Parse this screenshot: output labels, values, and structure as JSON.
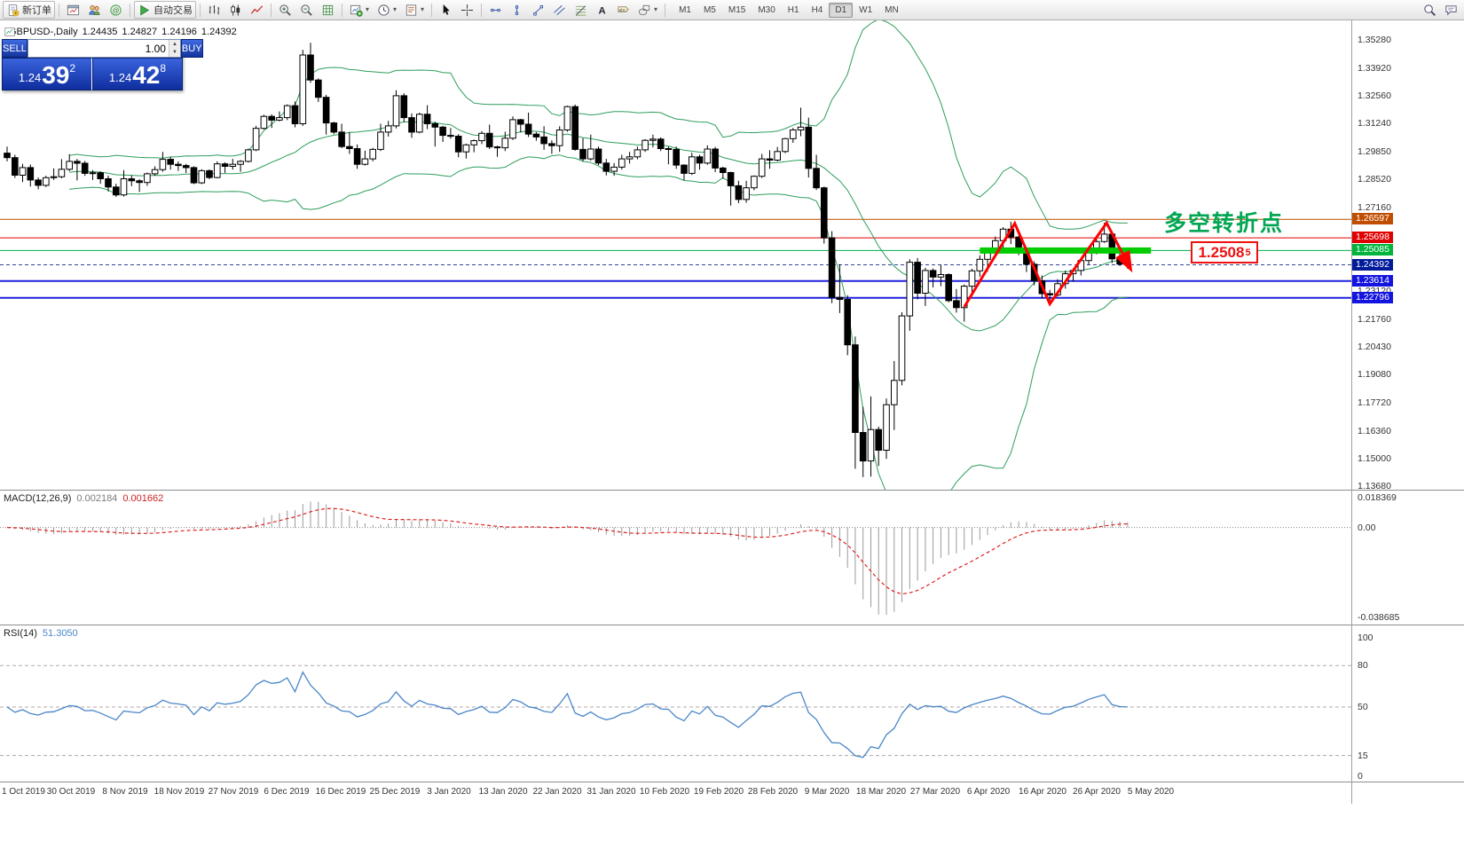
{
  "toolbar": {
    "groups": [
      [
        {
          "name": "new-order",
          "icon": "doc",
          "label": "新订单"
        }
      ],
      [
        {
          "name": "chart-window",
          "icon": "chartwin"
        },
        {
          "name": "profiles",
          "icon": "profiles"
        },
        {
          "name": "community",
          "icon": "at"
        }
      ],
      [
        {
          "name": "autotrade",
          "icon": "play",
          "label": "自动交易"
        }
      ],
      [
        {
          "name": "bar-chart",
          "icon": "bars"
        },
        {
          "name": "candlestick-chart",
          "icon": "candles"
        },
        {
          "name": "line-chart",
          "icon": "linech"
        }
      ],
      [
        {
          "name": "zoom-in",
          "icon": "zoomin"
        },
        {
          "name": "zoom-out",
          "icon": "zoomout"
        },
        {
          "name": "grid",
          "icon": "grid"
        }
      ],
      [
        {
          "name": "new-chart",
          "icon": "newchart",
          "caret": true
        },
        {
          "name": "periods",
          "icon": "clock",
          "caret": true
        },
        {
          "name": "templates",
          "icon": "template",
          "caret": true
        }
      ],
      [
        {
          "name": "cursor",
          "icon": "cursor"
        },
        {
          "name": "crosshair",
          "icon": "cross"
        }
      ],
      [
        {
          "name": "horizontal-line",
          "icon": "hline"
        },
        {
          "name": "vertical-line",
          "icon": "vline"
        },
        {
          "name": "trendline",
          "icon": "tline"
        },
        {
          "name": "channel",
          "icon": "channel"
        },
        {
          "name": "fibonacci",
          "icon": "fibo"
        },
        {
          "name": "text",
          "icon": "textA"
        },
        {
          "name": "text-label",
          "icon": "labelT"
        },
        {
          "name": "shapes",
          "icon": "shapes",
          "caret": true
        }
      ]
    ],
    "timeframes": {
      "items": [
        "M1",
        "M5",
        "M15",
        "M30",
        "H1",
        "H4",
        "D1",
        "W1",
        "MN"
      ],
      "active": "D1"
    },
    "right_icons": [
      {
        "name": "symbol-search",
        "icon": "search"
      },
      {
        "name": "chat",
        "icon": "chat"
      }
    ]
  },
  "symbol_bar": {
    "title": "GBPUSD-,Daily",
    "open": "1.24435",
    "high": "1.24827",
    "low": "1.24196",
    "close": "1.24392"
  },
  "trade_widget": {
    "sell_label": "SELL",
    "buy_label": "BUY",
    "volume": "1.00",
    "sell_price": {
      "prefix": "1.24",
      "big": "39",
      "sup": "2"
    },
    "buy_price": {
      "prefix": "1.24",
      "big": "42",
      "sup": "8"
    }
  },
  "price_scale": {
    "regular": [
      "1.35280",
      "1.33920",
      "1.32560",
      "1.31240",
      "1.29850",
      "1.28520",
      "1.27160",
      "1.23120",
      "1.21760",
      "1.20430",
      "1.19080",
      "1.17720",
      "1.16360",
      "1.15000",
      "1.13680"
    ],
    "special": [
      {
        "text": "1.26597",
        "value": 1.26597,
        "bg": "#C04E00"
      },
      {
        "text": "1.25698",
        "value": 1.25698,
        "bg": "#E00000"
      },
      {
        "text": "1.25085",
        "value": 1.25085,
        "bg": "#00B43C"
      },
      {
        "text": "1.24392",
        "value": 1.24392,
        "bg": "#001A9A"
      },
      {
        "text": "1.23614",
        "value": 1.23614,
        "bg": "#1414E0"
      },
      {
        "text": "1.22796",
        "value": 1.22796,
        "bg": "#1414E0"
      }
    ]
  },
  "annotations": {
    "turning_point": {
      "text": "多空转折点",
      "color": "#00A651"
    },
    "callout": {
      "text": "1.2508",
      "sup": "5",
      "color": "#EE1111"
    },
    "support_band": {
      "price": 1.25085,
      "from_bar": 125,
      "to_bar": 147,
      "color": "#00CC00"
    },
    "zigzag": {
      "color": "#FF0000",
      "points_bar_price": [
        [
          123,
          1.2235
        ],
        [
          129.5,
          1.264
        ],
        [
          134,
          1.225
        ],
        [
          141.3,
          1.2642
        ],
        [
          144.3,
          1.2425
        ]
      ]
    },
    "levels": [
      {
        "value": 1.26597,
        "color": "#C04E00",
        "width": 1
      },
      {
        "value": 1.25698,
        "color": "#E00000",
        "width": 1
      },
      {
        "value": 1.25085,
        "color": "#00B050",
        "width": 1
      },
      {
        "value": 1.24392,
        "color": "#334499",
        "width": 1,
        "dash": true
      },
      {
        "value": 1.23614,
        "color": "#2020DD",
        "width": 2
      },
      {
        "value": 1.22796,
        "color": "#2020DD",
        "width": 2
      }
    ]
  },
  "chart_data": {
    "type": "candlestick",
    "symbol": "GBPUSD",
    "timeframe": "Daily",
    "y_range": [
      1.1368,
      1.3528
    ],
    "x_labels": [
      "1 Oct 2019",
      "30 Oct 2019",
      "8 Nov 2019",
      "18 Nov 2019",
      "27 Nov 2019",
      "6 Dec 2019",
      "16 Dec 2019",
      "25 Dec 2019",
      "3 Jan 2020",
      "13 Jan 2020",
      "22 Jan 2020",
      "31 Jan 2020",
      "10 Feb 2020",
      "19 Feb 2020",
      "28 Feb 2020",
      "9 Mar 2020",
      "18 Mar 2020",
      "27 Mar 2020",
      "6 Apr 2020",
      "16 Apr 2020",
      "26 Apr 2020",
      "5 May 2020"
    ],
    "candles": [
      [
        1.298,
        1.3012,
        1.294,
        1.2958
      ],
      [
        1.2958,
        1.2972,
        1.286,
        1.2873
      ],
      [
        1.2873,
        1.2928,
        1.284,
        1.291
      ],
      [
        1.291,
        1.2925,
        1.2818,
        1.285
      ],
      [
        1.285,
        1.2862,
        1.2805,
        1.2824
      ],
      [
        1.2824,
        1.287,
        1.2816,
        1.2861
      ],
      [
        1.2861,
        1.2906,
        1.285,
        1.2866
      ],
      [
        1.2866,
        1.2951,
        1.2858,
        1.2902
      ],
      [
        1.2902,
        1.2975,
        1.2892,
        1.294
      ],
      [
        1.294,
        1.2952,
        1.2848,
        1.2931
      ],
      [
        1.2931,
        1.2942,
        1.287,
        1.2882
      ],
      [
        1.2882,
        1.2898,
        1.285,
        1.2885
      ],
      [
        1.2885,
        1.2892,
        1.2832,
        1.2856
      ],
      [
        1.2856,
        1.2871,
        1.2794,
        1.2816
      ],
      [
        1.2816,
        1.2832,
        1.2768,
        1.2778
      ],
      [
        1.2778,
        1.2898,
        1.277,
        1.2856
      ],
      [
        1.2856,
        1.2872,
        1.282,
        1.2846
      ],
      [
        1.2846,
        1.2854,
        1.2792,
        1.2838
      ],
      [
        1.2838,
        1.2886,
        1.2822,
        1.288
      ],
      [
        1.288,
        1.2916,
        1.287,
        1.29
      ],
      [
        1.29,
        1.2986,
        1.289,
        1.295
      ],
      [
        1.295,
        1.2962,
        1.29,
        1.2926
      ],
      [
        1.2926,
        1.294,
        1.2894,
        1.292
      ],
      [
        1.292,
        1.2928,
        1.2884,
        1.291
      ],
      [
        1.291,
        1.2916,
        1.283,
        1.2836
      ],
      [
        1.2836,
        1.2902,
        1.283,
        1.2895
      ],
      [
        1.2895,
        1.2901,
        1.2854,
        1.2862
      ],
      [
        1.2862,
        1.294,
        1.2858,
        1.2928
      ],
      [
        1.2928,
        1.2936,
        1.2884,
        1.2916
      ],
      [
        1.2916,
        1.2952,
        1.29,
        1.2926
      ],
      [
        1.2926,
        1.2946,
        1.289,
        1.294
      ],
      [
        1.294,
        1.3002,
        1.2935,
        1.2996
      ],
      [
        1.2996,
        1.3112,
        1.299,
        1.31
      ],
      [
        1.31,
        1.3166,
        1.3094,
        1.3158
      ],
      [
        1.3158,
        1.3168,
        1.3102,
        1.314
      ],
      [
        1.314,
        1.3182,
        1.3134,
        1.3152
      ],
      [
        1.3152,
        1.3216,
        1.314,
        1.321
      ],
      [
        1.321,
        1.323,
        1.3105,
        1.3122
      ],
      [
        1.3122,
        1.348,
        1.3112,
        1.3455
      ],
      [
        1.3455,
        1.3514,
        1.332,
        1.3334
      ],
      [
        1.3334,
        1.3342,
        1.3228,
        1.325
      ],
      [
        1.325,
        1.3262,
        1.307,
        1.3126
      ],
      [
        1.3126,
        1.3132,
        1.3072,
        1.3082
      ],
      [
        1.3082,
        1.3122,
        1.3004,
        1.3012
      ],
      [
        1.3012,
        1.3082,
        1.2976,
        1.3002
      ],
      [
        1.3002,
        1.3022,
        1.2904,
        1.2926
      ],
      [
        1.2926,
        1.2992,
        1.292,
        1.2952
      ],
      [
        1.2952,
        1.3006,
        1.294,
        1.2998
      ],
      [
        1.2998,
        1.3122,
        1.299,
        1.3082
      ],
      [
        1.3082,
        1.3136,
        1.306,
        1.3112
      ],
      [
        1.3112,
        1.3284,
        1.31,
        1.3258
      ],
      [
        1.3258,
        1.327,
        1.313,
        1.3152
      ],
      [
        1.3152,
        1.3172,
        1.3054,
        1.3082
      ],
      [
        1.3082,
        1.3176,
        1.3076,
        1.3168
      ],
      [
        1.3168,
        1.3212,
        1.3096,
        1.3122
      ],
      [
        1.3122,
        1.3132,
        1.3012,
        1.3106
      ],
      [
        1.3106,
        1.3112,
        1.3034,
        1.3066
      ],
      [
        1.3066,
        1.3102,
        1.305,
        1.3062
      ],
      [
        1.3062,
        1.3072,
        1.296,
        1.2986
      ],
      [
        1.2986,
        1.3026,
        1.2954,
        1.302
      ],
      [
        1.302,
        1.3046,
        1.2984,
        1.304
      ],
      [
        1.304,
        1.3086,
        1.3024,
        1.3076
      ],
      [
        1.3076,
        1.3118,
        1.3,
        1.301
      ],
      [
        1.301,
        1.3016,
        1.2962,
        1.3006
      ],
      [
        1.3006,
        1.3084,
        1.299,
        1.3052
      ],
      [
        1.3052,
        1.3158,
        1.3044,
        1.3142
      ],
      [
        1.3142,
        1.3146,
        1.308,
        1.312
      ],
      [
        1.312,
        1.3176,
        1.3058,
        1.3072
      ],
      [
        1.3072,
        1.3082,
        1.304,
        1.3058
      ],
      [
        1.3058,
        1.311,
        1.2996,
        1.3026
      ],
      [
        1.3026,
        1.3042,
        1.2976,
        1.3016
      ],
      [
        1.3016,
        1.311,
        1.2986,
        1.3092
      ],
      [
        1.3092,
        1.321,
        1.3084,
        1.3205
      ],
      [
        1.3205,
        1.3215,
        1.2992,
        1.2998
      ],
      [
        1.2998,
        1.3052,
        1.294,
        1.2952
      ],
      [
        1.2952,
        1.307,
        1.2944,
        1.3
      ],
      [
        1.3,
        1.3012,
        1.2922,
        1.2932
      ],
      [
        1.2932,
        1.2952,
        1.2872,
        1.2892
      ],
      [
        1.2892,
        1.2932,
        1.287,
        1.2912
      ],
      [
        1.2912,
        1.2972,
        1.29,
        1.2952
      ],
      [
        1.2952,
        1.2986,
        1.293,
        1.2962
      ],
      [
        1.2962,
        1.3012,
        1.295,
        1.2996
      ],
      [
        1.2996,
        1.3048,
        1.2986,
        1.3042
      ],
      [
        1.3042,
        1.307,
        1.3008,
        1.3048
      ],
      [
        1.3048,
        1.3056,
        1.299,
        1.3002
      ],
      [
        1.3002,
        1.3012,
        1.2926,
        1.2998
      ],
      [
        1.2998,
        1.3012,
        1.2904,
        1.2922
      ],
      [
        1.2922,
        1.2926,
        1.2848,
        1.2882
      ],
      [
        1.2882,
        1.2982,
        1.2874,
        1.2962
      ],
      [
        1.2962,
        1.2972,
        1.29,
        1.2932
      ],
      [
        1.2932,
        1.3018,
        1.2924,
        1.3
      ],
      [
        1.3,
        1.301,
        1.2888,
        1.2908
      ],
      [
        1.2908,
        1.2914,
        1.2856,
        1.2886
      ],
      [
        1.2886,
        1.289,
        1.2726,
        1.2822
      ],
      [
        1.2822,
        1.2846,
        1.2738,
        1.2756
      ],
      [
        1.2756,
        1.2846,
        1.274,
        1.2812
      ],
      [
        1.2812,
        1.2872,
        1.28,
        1.2868
      ],
      [
        1.2868,
        1.2976,
        1.286,
        1.2952
      ],
      [
        1.2952,
        1.2994,
        1.2904,
        1.2946
      ],
      [
        1.2946,
        1.301,
        1.294,
        1.2988
      ],
      [
        1.2988,
        1.3054,
        1.298,
        1.305
      ],
      [
        1.305,
        1.3102,
        1.303,
        1.3092
      ],
      [
        1.3092,
        1.32,
        1.3062,
        1.3106
      ],
      [
        1.3106,
        1.3152,
        1.2862,
        1.2906
      ],
      [
        1.2906,
        1.2972,
        1.2802,
        1.2812
      ],
      [
        1.2812,
        1.2818,
        1.2542,
        1.257
      ],
      [
        1.257,
        1.2602,
        1.2254,
        1.2282
      ],
      [
        1.2282,
        1.2442,
        1.2206,
        1.2272
      ],
      [
        1.2272,
        1.2292,
        1.2002,
        1.2052
      ],
      [
        1.2052,
        1.2092,
        1.1452,
        1.1628
      ],
      [
        1.1628,
        1.1752,
        1.1412,
        1.149
      ],
      [
        1.149,
        1.1802,
        1.1414,
        1.1642
      ],
      [
        1.1642,
        1.1656,
        1.1466,
        1.1542
      ],
      [
        1.1542,
        1.1792,
        1.15,
        1.1762
      ],
      [
        1.1762,
        1.1974,
        1.164,
        1.188
      ],
      [
        1.188,
        1.221,
        1.1856,
        1.2192
      ],
      [
        1.2192,
        1.2466,
        1.212,
        1.2452
      ],
      [
        1.2452,
        1.2472,
        1.2272,
        1.2302
      ],
      [
        1.2302,
        1.2425,
        1.224,
        1.2412
      ],
      [
        1.2412,
        1.2422,
        1.233,
        1.238
      ],
      [
        1.238,
        1.2438,
        1.2336,
        1.2392
      ],
      [
        1.2392,
        1.2398,
        1.2258,
        1.2266
      ],
      [
        1.2266,
        1.2322,
        1.2208,
        1.2232
      ],
      [
        1.2232,
        1.2344,
        1.2164,
        1.2336
      ],
      [
        1.2336,
        1.242,
        1.23,
        1.241
      ],
      [
        1.241,
        1.2486,
        1.2382,
        1.2466
      ],
      [
        1.2466,
        1.2522,
        1.2406,
        1.2516
      ],
      [
        1.2516,
        1.2576,
        1.2478,
        1.2556
      ],
      [
        1.2556,
        1.2622,
        1.252,
        1.2612
      ],
      [
        1.2612,
        1.2648,
        1.254,
        1.2574
      ],
      [
        1.2574,
        1.258,
        1.2486,
        1.2502
      ],
      [
        1.2502,
        1.2518,
        1.2404,
        1.2442
      ],
      [
        1.2442,
        1.2456,
        1.234,
        1.2362
      ],
      [
        1.2362,
        1.2388,
        1.2276,
        1.23
      ],
      [
        1.23,
        1.2318,
        1.2247,
        1.2294
      ],
      [
        1.2294,
        1.237,
        1.2286,
        1.2348
      ],
      [
        1.2348,
        1.2412,
        1.2324,
        1.2396
      ],
      [
        1.2396,
        1.2422,
        1.2358,
        1.2412
      ],
      [
        1.2412,
        1.2468,
        1.2388,
        1.246
      ],
      [
        1.246,
        1.2522,
        1.244,
        1.2516
      ],
      [
        1.2516,
        1.2574,
        1.249,
        1.2552
      ],
      [
        1.2552,
        1.2643,
        1.2546,
        1.2588
      ],
      [
        1.2588,
        1.2602,
        1.2448,
        1.2468
      ],
      [
        1.2468,
        1.2522,
        1.2434,
        1.2443
      ],
      [
        1.2444,
        1.2483,
        1.242,
        1.2439
      ]
    ],
    "indicators": {
      "bollinger": {
        "label": "Bollinger Bands (20,2)",
        "color": "#2E9E5B"
      },
      "macd": {
        "label": "MACD(12,26,9)",
        "value_main": "0.002184",
        "value_signal": "0.001662",
        "scale_top": "0.018369",
        "scale_zero": "0.00",
        "scale_bottom": "-0.038685",
        "histogram_color": "#9A9A9A",
        "signal_color": "#DD2222"
      },
      "rsi": {
        "label": "RSI(14)",
        "value": "51.3050",
        "scale": [
          "100",
          "80",
          "50",
          "15",
          "0"
        ],
        "levels": [
          80,
          50,
          15
        ],
        "color": "#4A86C8"
      }
    }
  }
}
